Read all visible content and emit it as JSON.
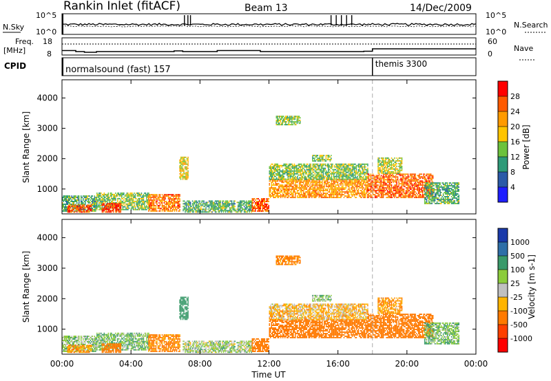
{
  "header": {
    "site": "Rankin Inlet (fitACF)",
    "beam": "Beam 13",
    "date": "14/Dec/2009"
  },
  "sky_panel": {
    "left_label": "N.Sky",
    "right_label": "N.Search",
    "left_ticks": [
      "10^5",
      "10^0"
    ],
    "right_ticks": [
      "10^5",
      "10^0"
    ]
  },
  "freq_panel": {
    "left_label_line1": "Freq.",
    "left_label_line2": "[MHz]",
    "right_label": "Nave",
    "left_ticks": [
      "18",
      "8"
    ],
    "right_ticks": [
      "60",
      "0"
    ]
  },
  "cpid": {
    "label": "CPID",
    "program_1": "normalsound (fast) 157",
    "program_2": "themis 3300"
  },
  "power_panel": {
    "ylabel": "Slant Range [km]",
    "yticks": [
      "4000",
      "3000",
      "2000",
      "1000"
    ],
    "colorbar_label": "Power [dB]",
    "colorbar_ticks": [
      "28",
      "24",
      "20",
      "16",
      "12",
      "8",
      "4"
    ],
    "colorbar_colors": [
      "#ff0000",
      "#ff5a00",
      "#ff9a00",
      "#ffc400",
      "#6cc23c",
      "#2e9a78",
      "#2a5aa8",
      "#1e1eff"
    ]
  },
  "velocity_panel": {
    "ylabel": "Slant Range [km]",
    "yticks": [
      "4000",
      "3000",
      "2000",
      "1000"
    ],
    "colorbar_label": "Velocity [m s-1]",
    "colorbar_ticks": [
      "1000",
      "500",
      "100",
      "25",
      "-25",
      "-100",
      "-500",
      "-1000"
    ],
    "colorbar_colors": [
      "#1a3aaa",
      "#2e6fa8",
      "#3a9a6a",
      "#8ccc3c",
      "#c0c0c0",
      "#ffb400",
      "#ff7a00",
      "#ff4000",
      "#ff0000"
    ]
  },
  "xaxis": {
    "label": "Time UT",
    "ticks": [
      "00:00",
      "04:00",
      "08:00",
      "12:00",
      "16:00",
      "20:00",
      "00:00"
    ]
  },
  "chart_data": {
    "type": "heatmap",
    "title": "Rankin Inlet (fitACF)  Beam 13  14/Dec/2009",
    "xlabel": "Time UT",
    "ylabel": "Slant Range [km]",
    "xlim_hours": [
      0,
      24
    ],
    "ylim_km": [
      180,
      4600
    ],
    "mode_change_hour": 18,
    "power_db_range": [
      0,
      32
    ],
    "velocity_range": [
      -1000,
      1000
    ],
    "frequency_mhz": [
      {
        "t": 0,
        "f": 10.6
      },
      {
        "t": 0.8,
        "f": 10.0
      },
      {
        "t": 1.3,
        "f": 9.6
      },
      {
        "t": 2.0,
        "f": 10.0
      },
      {
        "t": 6.5,
        "f": 10.4
      },
      {
        "t": 7.0,
        "f": 10.0
      },
      {
        "t": 8.0,
        "f": 10.0
      },
      {
        "t": 9.0,
        "f": 10.6
      },
      {
        "t": 11.5,
        "f": 10.0
      },
      {
        "t": 17.5,
        "f": 10.2
      },
      {
        "t": 18.0,
        "f": 11.6
      },
      {
        "t": 24,
        "f": 11.6
      }
    ],
    "echo_regions": [
      {
        "t0": 0.0,
        "t1": 2.0,
        "r0": 250,
        "r1": 750,
        "power_db": 12,
        "velocity": 60
      },
      {
        "t0": 0.3,
        "t1": 1.7,
        "r0": 220,
        "r1": 450,
        "power_db": 26,
        "velocity": -120
      },
      {
        "t0": 2.0,
        "t1": 5.0,
        "r0": 300,
        "r1": 850,
        "power_db": 14,
        "velocity": 80
      },
      {
        "t0": 2.3,
        "t1": 3.4,
        "r0": 220,
        "r1": 500,
        "power_db": 27,
        "velocity": -200
      },
      {
        "t0": 5.0,
        "t1": 6.8,
        "r0": 250,
        "r1": 800,
        "power_db": 24,
        "velocity": -150
      },
      {
        "t0": 6.8,
        "t1": 7.3,
        "r0": 1300,
        "r1": 2050,
        "power_db": 18,
        "velocity": 300
      },
      {
        "t0": 7.0,
        "t1": 11.0,
        "r0": 220,
        "r1": 600,
        "power_db": 12,
        "velocity": 40
      },
      {
        "t0": 11.0,
        "t1": 12.0,
        "r0": 250,
        "r1": 700,
        "power_db": 26,
        "velocity": -200
      },
      {
        "t0": 12.0,
        "t1": 17.7,
        "r0": 700,
        "r1": 1300,
        "power_db": 22,
        "velocity": -250
      },
      {
        "t0": 12.0,
        "t1": 17.7,
        "r0": 1300,
        "r1": 1800,
        "power_db": 14,
        "velocity": -50
      },
      {
        "t0": 12.4,
        "t1": 13.8,
        "r0": 3100,
        "r1": 3400,
        "power_db": 14,
        "velocity": -150
      },
      {
        "t0": 14.5,
        "t1": 15.6,
        "r0": 1900,
        "r1": 2100,
        "power_db": 14,
        "velocity": 60
      },
      {
        "t0": 17.7,
        "t1": 21.5,
        "r0": 700,
        "r1": 1500,
        "power_db": 25,
        "velocity": -300
      },
      {
        "t0": 18.3,
        "t1": 19.7,
        "r0": 1500,
        "r1": 2000,
        "power_db": 16,
        "velocity": -100
      },
      {
        "t0": 21.0,
        "t1": 23.0,
        "r0": 500,
        "r1": 1200,
        "power_db": 12,
        "velocity": 80
      }
    ]
  }
}
